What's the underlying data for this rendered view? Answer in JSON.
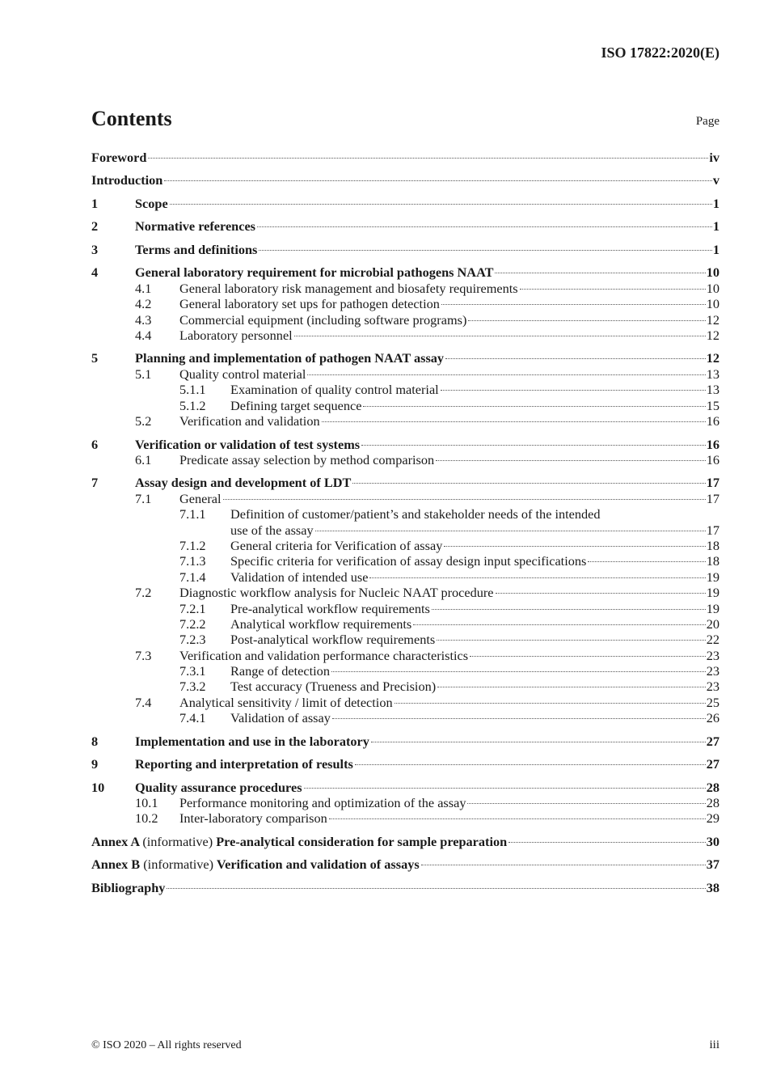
{
  "header": {
    "doc_id": "ISO 17822:2020(E)"
  },
  "title": "Contents",
  "page_label": "Page",
  "entries": [
    {
      "level": 1,
      "num": "",
      "title": "Foreword",
      "page": "iv"
    },
    {
      "level": 1,
      "num": "",
      "title": "Introduction",
      "page": "v"
    },
    {
      "level": 1,
      "num": "1",
      "title": "Scope",
      "page": "1"
    },
    {
      "level": 1,
      "num": "2",
      "title": "Normative references",
      "page": "1"
    },
    {
      "level": 1,
      "num": "3",
      "title": "Terms and definitions",
      "page": "1"
    },
    {
      "level": 1,
      "num": "4",
      "title": "General laboratory requirement for microbial pathogens NAAT",
      "page": "10"
    },
    {
      "level": 2,
      "num": "4.1",
      "title": "General laboratory risk management and biosafety requirements",
      "page": "10"
    },
    {
      "level": 2,
      "num": "4.2",
      "title": "General laboratory set ups for pathogen detection",
      "page": "10"
    },
    {
      "level": 2,
      "num": "4.3",
      "title": "Commercial equipment (including software programs)",
      "page": "12"
    },
    {
      "level": 2,
      "num": "4.4",
      "title": "Laboratory personnel",
      "page": "12"
    },
    {
      "level": 1,
      "num": "5",
      "title": "Planning and implementation of pathogen NAAT assay",
      "page": "12"
    },
    {
      "level": 2,
      "num": "5.1",
      "title": "Quality control material",
      "page": "13"
    },
    {
      "level": 3,
      "num": "5.1.1",
      "title": "Examination of quality control material",
      "page": "13"
    },
    {
      "level": 3,
      "num": "5.1.2",
      "title": "Defining target sequence",
      "page": "15"
    },
    {
      "level": 2,
      "num": "5.2",
      "title": "Verification and validation",
      "page": "16"
    },
    {
      "level": 1,
      "num": "6",
      "title": "Verification or validation of test systems",
      "page": "16"
    },
    {
      "level": 2,
      "num": "6.1",
      "title": "Predicate assay selection by method comparison",
      "page": "16"
    },
    {
      "level": 1,
      "num": "7",
      "title": "Assay design and development of LDT",
      "page": "17"
    },
    {
      "level": 2,
      "num": "7.1",
      "title": "General",
      "page": "17"
    },
    {
      "level": 3,
      "num": "7.1.1",
      "title": "Definition of customer/patient’s and stakeholder needs of the intended",
      "title_cont": "use of the assay",
      "page": "17"
    },
    {
      "level": 3,
      "num": "7.1.2",
      "title": "General criteria for Verification of assay",
      "page": "18"
    },
    {
      "level": 3,
      "num": "7.1.3",
      "title": "Specific criteria for verification of assay design input specifications",
      "page": "18"
    },
    {
      "level": 3,
      "num": "7.1.4",
      "title": "Validation of intended use",
      "page": "19"
    },
    {
      "level": 2,
      "num": "7.2",
      "title": "Diagnostic workflow analysis for Nucleic NAAT procedure",
      "page": "19"
    },
    {
      "level": 3,
      "num": "7.2.1",
      "title": "Pre-analytical workflow requirements",
      "page": "19"
    },
    {
      "level": 3,
      "num": "7.2.2",
      "title": "Analytical workflow requirements",
      "page": "20"
    },
    {
      "level": 3,
      "num": "7.2.3",
      "title": "Post-analytical workflow requirements",
      "page": "22"
    },
    {
      "level": 2,
      "num": "7.3",
      "title": "Verification and validation performance characteristics",
      "page": "23"
    },
    {
      "level": 3,
      "num": "7.3.1",
      "title": "Range of detection",
      "page": "23"
    },
    {
      "level": 3,
      "num": "7.3.2",
      "title": "Test accuracy (Trueness and Precision)",
      "page": "23"
    },
    {
      "level": 2,
      "num": "7.4",
      "title": "Analytical sensitivity / limit of detection",
      "page": "25"
    },
    {
      "level": 3,
      "num": "7.4.1",
      "title": "Validation of assay",
      "page": "26"
    },
    {
      "level": 1,
      "num": "8",
      "title": "Implementation and use in the laboratory",
      "page": "27"
    },
    {
      "level": 1,
      "num": "9",
      "title": "Reporting and interpretation of results",
      "page": "27"
    },
    {
      "level": 1,
      "num": "10",
      "title": "Quality assurance procedures",
      "page": "28"
    },
    {
      "level": 2,
      "num": "10.1",
      "title": "Performance monitoring and optimization of the assay",
      "page": "28"
    },
    {
      "level": 2,
      "num": "10.2",
      "title": "Inter-laboratory comparison",
      "page": "29"
    },
    {
      "level": 1,
      "num": "",
      "annex": "Annex A",
      "annex_type": "(informative)",
      "title": "Pre-analytical consideration for sample preparation",
      "page": "30"
    },
    {
      "level": 1,
      "num": "",
      "annex": "Annex B",
      "annex_type": "(informative)",
      "title": "Verification and validation of assays",
      "page": "37"
    },
    {
      "level": 1,
      "num": "",
      "title": "Bibliography",
      "page": "38"
    }
  ],
  "footer": {
    "copyright": "© ISO 2020 – All rights reserved",
    "page_number": "iii"
  }
}
